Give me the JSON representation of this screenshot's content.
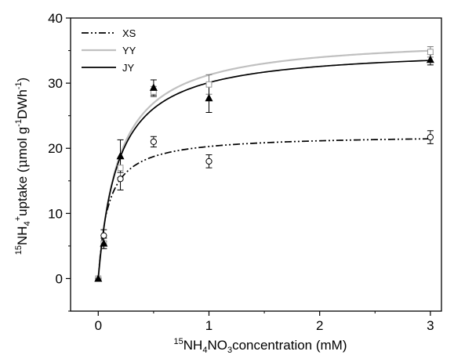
{
  "chart_data": {
    "type": "scatter",
    "xlabel_parts": {
      "sup1": "15",
      "t1": "NH",
      "sub1": "4",
      "t2": "NO",
      "sub2": "3",
      "t3": "concentration (mM)"
    },
    "ylabel_parts": {
      "sup1": "15",
      "t1": "NH",
      "sub1": "4",
      "sup2": "+",
      "t2": "uptake (",
      "mu": "μ",
      "t3": "mol g",
      "sup3": "-1",
      "t4": "DWh",
      "sup4": "-1",
      "t5": ")"
    },
    "xlim": [
      -0.25,
      3.1
    ],
    "ylim": [
      -5,
      40
    ],
    "xticks": [
      "0",
      "1",
      "2",
      "3"
    ],
    "xtick_values": [
      0,
      1,
      2,
      3
    ],
    "yticks": [
      "0",
      "10",
      "20",
      "30",
      "40"
    ],
    "ytick_values": [
      0,
      10,
      20,
      30,
      40
    ],
    "grid": false,
    "legend_position": "top-left",
    "series": [
      {
        "name": "XS",
        "line_style": "dash-dot-dot",
        "color": "#000000",
        "marker": "open-circle",
        "points": [
          {
            "x": 0,
            "y": 0,
            "err": 0
          },
          {
            "x": 0.05,
            "y": 6.6,
            "err": 0.9
          },
          {
            "x": 0.2,
            "y": 15.3,
            "err": 1.7
          },
          {
            "x": 0.5,
            "y": 21.0,
            "err": 0.8
          },
          {
            "x": 1,
            "y": 18.0,
            "err": 1.0
          },
          {
            "x": 3,
            "y": 21.7,
            "err": 1.0
          }
        ],
        "curve": {
          "vmax": 22.1,
          "km": 0.09
        }
      },
      {
        "name": "YY",
        "line_style": "solid",
        "color": "#c0c0c0",
        "marker": "open-square",
        "points": [
          {
            "x": 0,
            "y": 0,
            "err": 0
          },
          {
            "x": 0.05,
            "y": 5.4,
            "err": 0.8
          },
          {
            "x": 0.2,
            "y": 17.0,
            "err": 1.5
          },
          {
            "x": 0.5,
            "y": 28.7,
            "err": 0.8
          },
          {
            "x": 1,
            "y": 29.8,
            "err": 1.5
          },
          {
            "x": 3,
            "y": 34.8,
            "err": 0.8
          }
        ],
        "curve": {
          "vmax": 37.2,
          "km": 0.19
        }
      },
      {
        "name": "JY",
        "line_style": "solid",
        "color": "#000000",
        "marker": "filled-triangle",
        "points": [
          {
            "x": 0,
            "y": 0,
            "err": 0
          },
          {
            "x": 0.05,
            "y": 5.4,
            "err": 0.8
          },
          {
            "x": 0.2,
            "y": 18.8,
            "err": 2.5
          },
          {
            "x": 0.5,
            "y": 29.3,
            "err": 1.2
          },
          {
            "x": 1,
            "y": 27.7,
            "err": 2.2
          },
          {
            "x": 3,
            "y": 33.6,
            "err": 0.8
          }
        ],
        "curve": {
          "vmax": 35.5,
          "km": 0.18
        }
      }
    ]
  }
}
